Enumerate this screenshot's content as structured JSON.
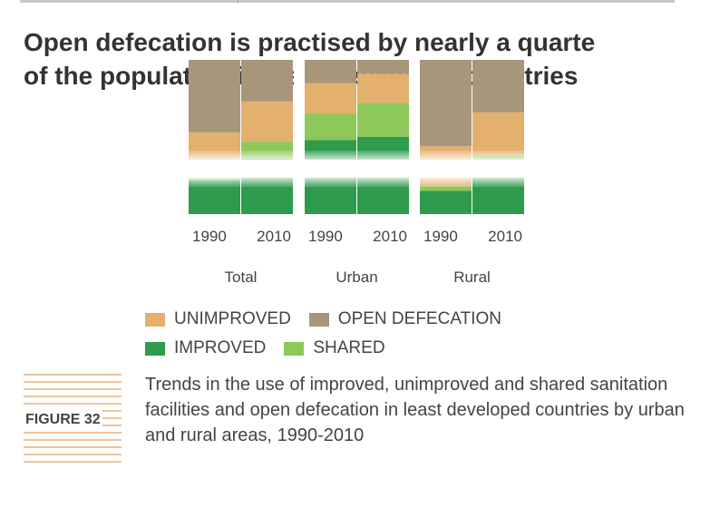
{
  "title_lines": [
    "Open defecation is practised by nearly a quarte",
    "of the population in least developed countries"
  ],
  "figure_label": "FIGURE 32",
  "caption": "Trends in the use of improved, unimproved and shared sanitation facilities and open defecation in least developed countries by urban and rural areas, 1990-2010",
  "colors": {
    "unimproved": "#e3b06e",
    "open_defecation": "#a8967c",
    "improved": "#2e9a4c",
    "shared": "#8cc85a"
  },
  "legend": [
    {
      "label": "UNIMPROVED",
      "key": "unimproved"
    },
    {
      "label": "OPEN DEFECATION",
      "key": "open_defecation"
    },
    {
      "label": "IMPROVED",
      "key": "improved"
    },
    {
      "label": "SHARED",
      "key": "shared"
    }
  ],
  "chart_data": {
    "type": "bar",
    "stacked": true,
    "groups": [
      {
        "name": "Total",
        "x": [
          "1990",
          "2010"
        ]
      },
      {
        "name": "Urban",
        "x": [
          "1990",
          "2010"
        ]
      },
      {
        "name": "Rural",
        "x": [
          "1990",
          "2010"
        ]
      }
    ],
    "series": [
      {
        "name": "IMPROVED",
        "key": "improved",
        "values": [
          [
            22,
            36
          ],
          [
            48,
            50
          ],
          [
            15,
            31
          ]
        ]
      },
      {
        "name": "SHARED",
        "key": "shared",
        "values": [
          [
            6,
            11
          ],
          [
            17,
            22
          ],
          [
            3,
            7
          ]
        ]
      },
      {
        "name": "UNIMPROVED",
        "key": "unimproved",
        "values": [
          [
            25,
            26
          ],
          [
            20,
            19
          ],
          [
            26,
            28
          ]
        ]
      },
      {
        "name": "OPEN DEFECATION",
        "key": "open_defecation",
        "values": [
          [
            47,
            27
          ],
          [
            15,
            9
          ],
          [
            56,
            34
          ]
        ]
      }
    ],
    "ylim": [
      0,
      100
    ]
  }
}
